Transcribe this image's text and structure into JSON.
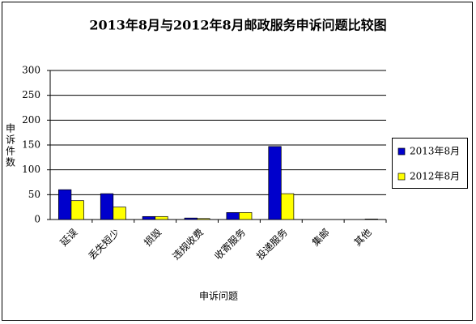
{
  "chart_data": {
    "type": "bar",
    "title": "2013年8月与2012年8月邮政服务申诉问题比较图",
    "x_label": "申诉问题",
    "y_label": "申诉件数",
    "categories": [
      "延误",
      "丢失短少",
      "损毁",
      "违规收费",
      "收寄服务",
      "投递服务",
      "集邮",
      "其他"
    ],
    "series": [
      {
        "name": "2013年8月",
        "color": "#0000cc",
        "values": [
          60,
          52,
          6,
          3,
          14,
          147,
          0,
          0
        ]
      },
      {
        "name": "2012年8月",
        "color": "#ffff00",
        "values": [
          38,
          25,
          6,
          2,
          14,
          52,
          0,
          1
        ]
      }
    ],
    "ylim": [
      0,
      300
    ],
    "yticks": [
      0,
      50,
      100,
      150,
      200,
      250,
      300
    ],
    "grid": true
  }
}
